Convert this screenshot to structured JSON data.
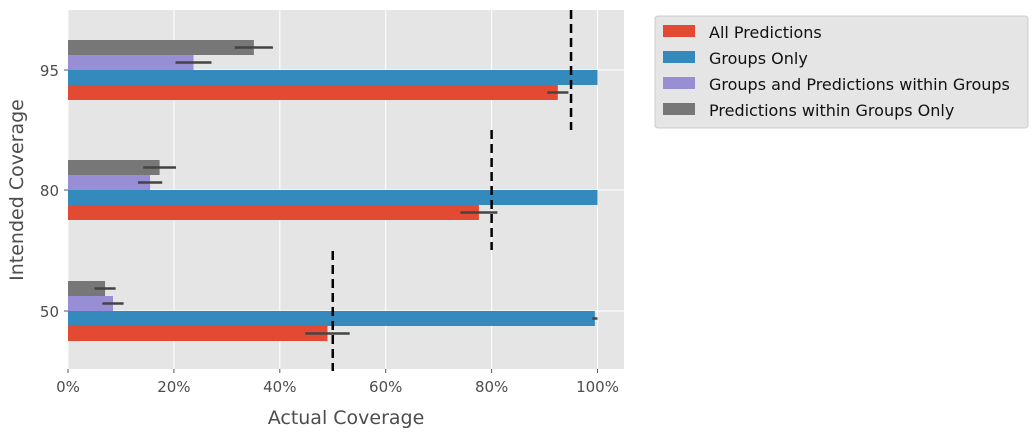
{
  "chart_data": {
    "type": "bar",
    "orientation": "horizontal",
    "categories": [
      "95",
      "80",
      "50"
    ],
    "xlabel": "Actual Coverage",
    "ylabel": "Intended Coverage",
    "xlim": [
      0,
      1.05
    ],
    "xticks": [
      0,
      0.2,
      0.4,
      0.6,
      0.8,
      1.0
    ],
    "xtick_labels": [
      "0%",
      "20%",
      "40%",
      "60%",
      "80%",
      "100%"
    ],
    "grid": true,
    "legend_position": "outside-right-top",
    "series": [
      {
        "name": "All Predictions",
        "color": "#e24a33",
        "values": [
          0.925,
          0.776,
          0.49
        ],
        "errors": [
          0.02,
          0.035,
          0.042
        ]
      },
      {
        "name": "Groups Only",
        "color": "#348abd",
        "values": [
          1.0,
          1.0,
          0.995
        ],
        "errors": [
          0,
          0,
          0.005
        ]
      },
      {
        "name": "Groups and Predictions within Groups",
        "color": "#988ed5",
        "values": [
          0.237,
          0.155,
          0.085
        ],
        "errors": [
          0.034,
          0.023,
          0.02
        ]
      },
      {
        "name": "Predictions within Groups Only",
        "color": "#777777",
        "values": [
          0.351,
          0.173,
          0.07
        ],
        "errors": [
          0.036,
          0.031,
          0.02
        ]
      }
    ],
    "reference_lines": [
      0.95,
      0.8,
      0.5
    ]
  }
}
